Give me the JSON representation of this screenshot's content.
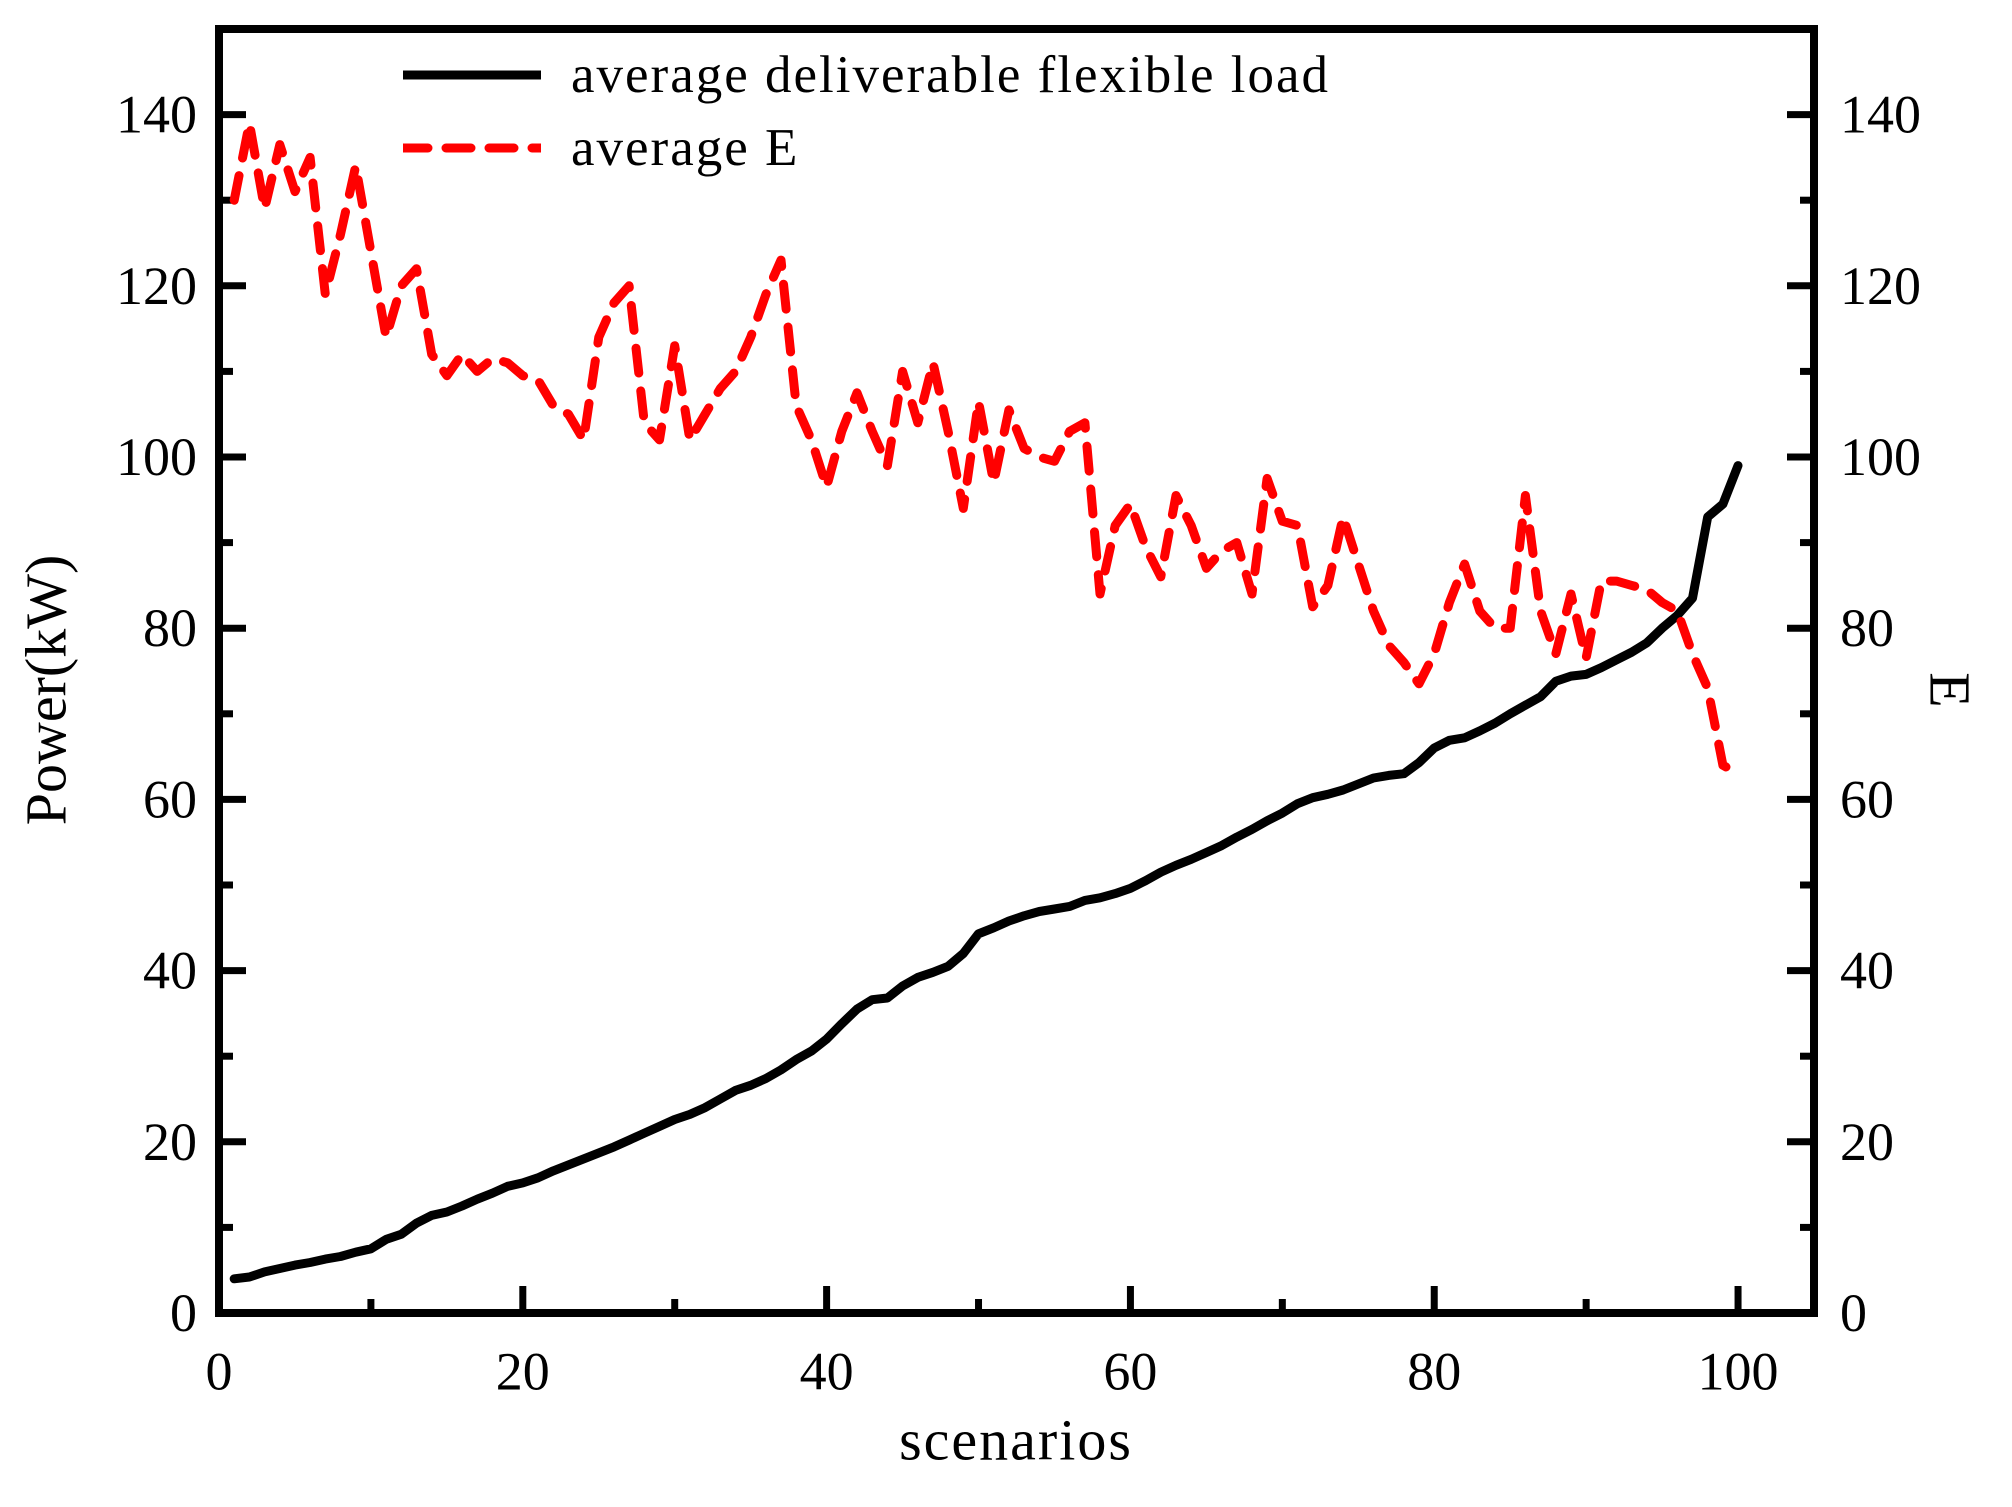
{
  "figure": {
    "background": "#ffffff"
  },
  "axes": {
    "x": {
      "label": "scenarios",
      "min": 0,
      "max": 105,
      "major_ticks": [
        0,
        20,
        40,
        60,
        80,
        100
      ],
      "minor_step": 10
    },
    "y_left": {
      "label": "Power(kW)",
      "min": 0,
      "max": 150,
      "major_ticks": [
        0,
        20,
        40,
        60,
        80,
        100,
        120,
        140
      ],
      "minor_step": 10
    },
    "y_right": {
      "label": "E",
      "min": 0,
      "max": 150,
      "major_ticks": [
        0,
        20,
        40,
        60,
        80,
        100,
        120,
        140
      ],
      "minor_step": 10
    }
  },
  "legend": [
    {
      "label": "average deliverable flexible load",
      "color": "#000000",
      "dash": "solid"
    },
    {
      "label": "average E",
      "color": "#ff0000",
      "dash": "dashed"
    }
  ],
  "chart_data": {
    "type": "line",
    "title": "",
    "xlabel": "scenarios",
    "ylabel_left": "Power(kW)",
    "ylabel_right": "E",
    "xlim": [
      0,
      105
    ],
    "ylim": [
      0,
      150
    ],
    "grid": false,
    "legend_position": "top-left-inside",
    "x": [
      1,
      2,
      3,
      4,
      5,
      6,
      7,
      8,
      9,
      10,
      11,
      12,
      13,
      14,
      15,
      16,
      17,
      18,
      19,
      20,
      21,
      22,
      23,
      24,
      25,
      26,
      27,
      28,
      29,
      30,
      31,
      32,
      33,
      34,
      35,
      36,
      37,
      38,
      39,
      40,
      41,
      42,
      43,
      44,
      45,
      46,
      47,
      48,
      49,
      50,
      51,
      52,
      53,
      54,
      55,
      56,
      57,
      58,
      59,
      60,
      61,
      62,
      63,
      64,
      65,
      66,
      67,
      68,
      69,
      70,
      71,
      72,
      73,
      74,
      75,
      76,
      77,
      78,
      79,
      80,
      81,
      82,
      83,
      84,
      85,
      86,
      87,
      88,
      89,
      90,
      91,
      92,
      93,
      94,
      95,
      96,
      97,
      98,
      99,
      100
    ],
    "series": [
      {
        "name": "average deliverable flexible load",
        "axis": "left",
        "color": "#000000",
        "style": "solid",
        "values": [
          4,
          4.2,
          4.8,
          5.2,
          5.6,
          5.9,
          6.3,
          6.6,
          7.1,
          7.5,
          8.6,
          9.2,
          10.5,
          11.4,
          11.8,
          12.5,
          13.3,
          14,
          14.8,
          15.2,
          15.8,
          16.6,
          17.3,
          18,
          18.7,
          19.4,
          20.2,
          21,
          21.8,
          22.6,
          23.2,
          24,
          25,
          26,
          26.6,
          27.4,
          28.4,
          29.6,
          30.6,
          32,
          33.8,
          35.5,
          36.6,
          36.8,
          38.2,
          39.2,
          39.8,
          40.5,
          42,
          44.3,
          45,
          45.8,
          46.4,
          46.9,
          47.2,
          47.5,
          48.2,
          48.5,
          49,
          49.6,
          50.5,
          51.5,
          52.3,
          53,
          53.8,
          54.6,
          55.6,
          56.5,
          57.5,
          58.4,
          59.5,
          60.2,
          60.6,
          61.1,
          61.8,
          62.5,
          62.8,
          63,
          64.3,
          66,
          66.9,
          67.2,
          68,
          68.9,
          70,
          71,
          72,
          73.8,
          74.4,
          74.6,
          75.4,
          76.3,
          77.2,
          78.3,
          80,
          81.5,
          83.5,
          93,
          94.5,
          99
        ]
      },
      {
        "name": "average E",
        "axis": "right",
        "color": "#ff0000",
        "style": "dashed",
        "values": [
          130,
          139,
          129,
          136.5,
          131,
          135,
          119,
          126,
          134,
          124,
          114,
          120,
          122,
          112,
          109.5,
          112,
          110,
          111.5,
          111,
          109.5,
          109,
          106,
          105,
          102,
          114,
          118,
          120,
          104,
          102,
          113,
          102,
          105,
          108,
          110,
          114,
          119,
          123,
          106,
          102,
          96.5,
          103,
          107.5,
          103,
          99,
          110,
          104,
          111,
          103,
          94,
          106.5,
          97,
          105.5,
          101,
          100,
          99.5,
          103,
          104,
          84,
          92,
          94.5,
          89.5,
          86,
          95.5,
          92,
          87,
          89,
          90,
          84,
          97.5,
          92.5,
          92,
          82.5,
          85,
          93,
          87.5,
          82,
          78,
          76,
          73.5,
          77,
          83,
          87.5,
          82,
          80,
          80,
          95.5,
          82,
          77,
          84,
          76.5,
          85.5,
          85.5,
          85,
          84.5,
          83,
          82,
          77,
          73,
          64,
          63
        ]
      }
    ]
  }
}
